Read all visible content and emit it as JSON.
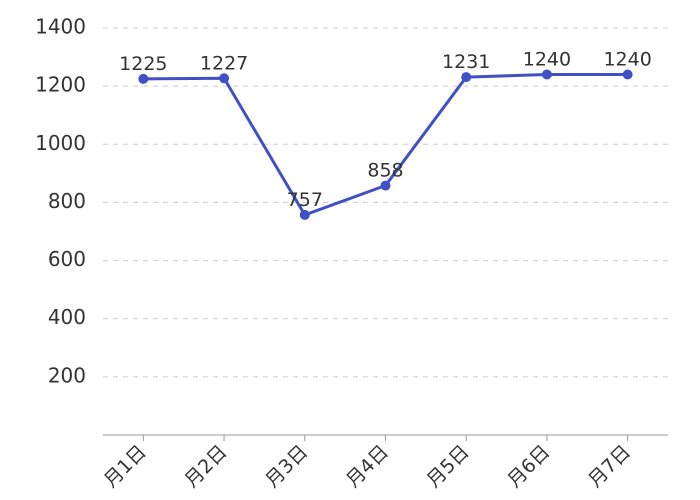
{
  "chart_data": {
    "type": "line",
    "categories": [
      "月1日",
      "月2日",
      "月3日",
      "月4日",
      "月5日",
      "月6日",
      "月7日"
    ],
    "series": [
      {
        "color": "#3f51c4",
        "values": [
          1225,
          1227,
          757,
          858,
          1231,
          1240,
          1240
        ]
      }
    ],
    "ylim": [
      0,
      1400
    ],
    "yticks": [
      200,
      400,
      600,
      800,
      1000,
      1200,
      1400
    ],
    "grid": true
  }
}
